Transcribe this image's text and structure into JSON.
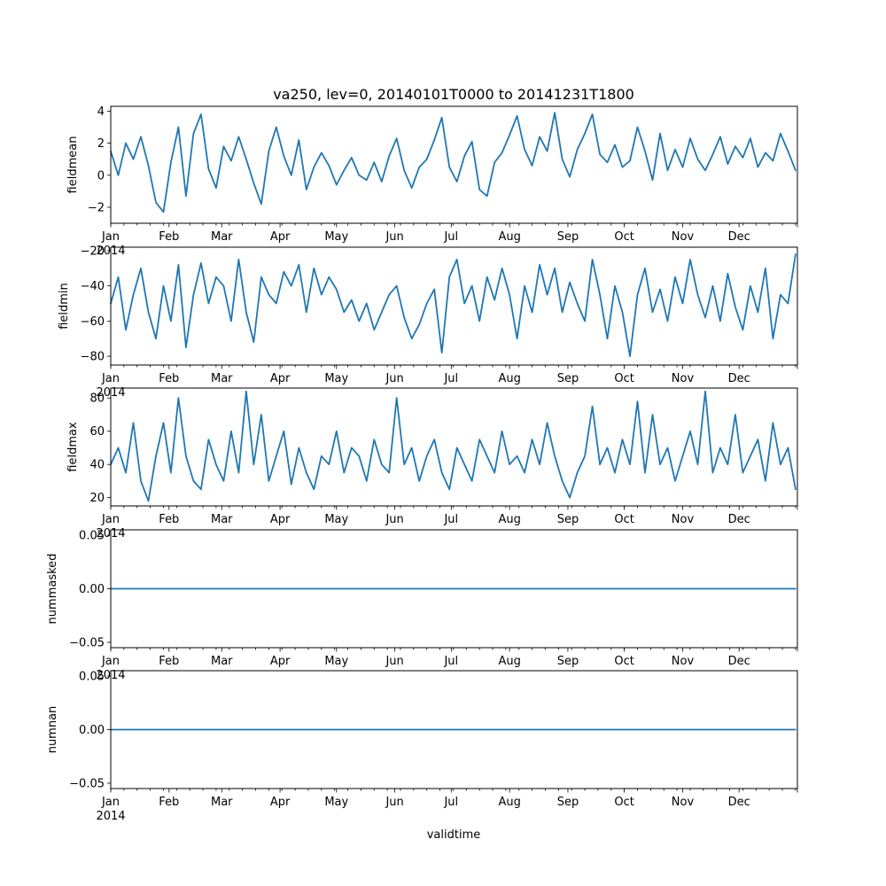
{
  "chart_data": {
    "type": "line",
    "title": "va250, lev=0, 20140101T0000 to 20141231T1800",
    "xlabel": "validtime",
    "x_range": [
      "2014-01-01",
      "2015-01-01"
    ],
    "x_month_labels": [
      "Jan",
      "Feb",
      "Mar",
      "Apr",
      "May",
      "Jun",
      "Jul",
      "Aug",
      "Sep",
      "Oct",
      "Nov",
      "Dec"
    ],
    "x_year_label": "2014",
    "color": "#1f77b4",
    "grid": false,
    "panels": [
      {
        "ylabel": "fieldmean",
        "ylim": [
          -3,
          4.3
        ],
        "yticks": [
          -2,
          0,
          2,
          4
        ],
        "ytick_labels": [
          "−2",
          "0",
          "2",
          "4"
        ],
        "x": [
          "2014-01-01",
          "2014-01-05",
          "2014-01-09",
          "2014-01-13",
          "2014-01-17",
          "2014-01-21",
          "2014-01-25",
          "2014-01-29",
          "2014-02-02",
          "2014-02-06",
          "2014-02-10",
          "2014-02-14",
          "2014-02-18",
          "2014-02-22",
          "2014-02-26",
          "2014-03-02",
          "2014-03-06",
          "2014-03-10",
          "2014-03-14",
          "2014-03-18",
          "2014-03-22",
          "2014-03-26",
          "2014-03-30",
          "2014-04-03",
          "2014-04-07",
          "2014-04-11",
          "2014-04-15",
          "2014-04-19",
          "2014-04-23",
          "2014-04-27",
          "2014-05-01",
          "2014-05-05",
          "2014-05-09",
          "2014-05-13",
          "2014-05-17",
          "2014-05-21",
          "2014-05-25",
          "2014-05-29",
          "2014-06-02",
          "2014-06-06",
          "2014-06-10",
          "2014-06-14",
          "2014-06-18",
          "2014-06-22",
          "2014-06-26",
          "2014-06-30",
          "2014-07-04",
          "2014-07-08",
          "2014-07-12",
          "2014-07-16",
          "2014-07-20",
          "2014-07-24",
          "2014-07-28",
          "2014-08-01",
          "2014-08-05",
          "2014-08-09",
          "2014-08-13",
          "2014-08-17",
          "2014-08-21",
          "2014-08-25",
          "2014-08-29",
          "2014-09-02",
          "2014-09-06",
          "2014-09-10",
          "2014-09-14",
          "2014-09-18",
          "2014-09-22",
          "2014-09-26",
          "2014-09-30",
          "2014-10-04",
          "2014-10-08",
          "2014-10-12",
          "2014-10-16",
          "2014-10-20",
          "2014-10-24",
          "2014-10-28",
          "2014-11-01",
          "2014-11-05",
          "2014-11-09",
          "2014-11-13",
          "2014-11-17",
          "2014-11-21",
          "2014-11-25",
          "2014-11-29",
          "2014-12-03",
          "2014-12-07",
          "2014-12-11",
          "2014-12-15",
          "2014-12-19",
          "2014-12-23",
          "2014-12-27",
          "2014-12-31"
        ],
        "values": [
          1.5,
          0.0,
          2.0,
          1.0,
          2.4,
          0.6,
          -1.7,
          -2.3,
          0.8,
          3.0,
          -1.3,
          2.6,
          3.8,
          0.4,
          -0.8,
          1.8,
          0.9,
          2.4,
          1.0,
          -0.5,
          -1.8,
          1.5,
          3.0,
          1.2,
          0.0,
          2.2,
          -0.9,
          0.5,
          1.4,
          0.6,
          -0.6,
          0.3,
          1.1,
          0.0,
          -0.3,
          0.8,
          -0.4,
          1.2,
          2.3,
          0.3,
          -0.8,
          0.5,
          1.0,
          2.2,
          3.6,
          0.5,
          -0.4,
          1.2,
          2.1,
          -0.9,
          -1.3,
          0.8,
          1.4,
          2.5,
          3.7,
          1.6,
          0.6,
          2.4,
          1.5,
          3.9,
          1.0,
          -0.1,
          1.6,
          2.6,
          3.8,
          1.3,
          0.8,
          1.9,
          0.5,
          0.9,
          3.0,
          1.5,
          -0.3,
          2.6,
          0.3,
          1.6,
          0.5,
          2.3,
          1.0,
          0.3,
          1.3,
          2.4,
          0.7,
          1.8,
          1.1,
          2.3,
          0.5,
          1.4,
          0.9,
          2.6,
          1.5,
          0.3
        ]
      },
      {
        "ylabel": "fieldmin",
        "ylim": [
          -85,
          -18
        ],
        "yticks": [
          -80,
          -60,
          -40,
          -20
        ],
        "ytick_labels": [
          "−80",
          "−60",
          "−40",
          "−20"
        ],
        "x": [
          "2014-01-01",
          "2014-01-05",
          "2014-01-09",
          "2014-01-13",
          "2014-01-17",
          "2014-01-21",
          "2014-01-25",
          "2014-01-29",
          "2014-02-02",
          "2014-02-06",
          "2014-02-10",
          "2014-02-14",
          "2014-02-18",
          "2014-02-22",
          "2014-02-26",
          "2014-03-02",
          "2014-03-06",
          "2014-03-10",
          "2014-03-14",
          "2014-03-18",
          "2014-03-22",
          "2014-03-26",
          "2014-03-30",
          "2014-04-03",
          "2014-04-07",
          "2014-04-11",
          "2014-04-15",
          "2014-04-19",
          "2014-04-23",
          "2014-04-27",
          "2014-05-01",
          "2014-05-05",
          "2014-05-09",
          "2014-05-13",
          "2014-05-17",
          "2014-05-21",
          "2014-05-25",
          "2014-05-29",
          "2014-06-02",
          "2014-06-06",
          "2014-06-10",
          "2014-06-14",
          "2014-06-18",
          "2014-06-22",
          "2014-06-26",
          "2014-06-30",
          "2014-07-04",
          "2014-07-08",
          "2014-07-12",
          "2014-07-16",
          "2014-07-20",
          "2014-07-24",
          "2014-07-28",
          "2014-08-01",
          "2014-08-05",
          "2014-08-09",
          "2014-08-13",
          "2014-08-17",
          "2014-08-21",
          "2014-08-25",
          "2014-08-29",
          "2014-09-02",
          "2014-09-06",
          "2014-09-10",
          "2014-09-14",
          "2014-09-18",
          "2014-09-22",
          "2014-09-26",
          "2014-09-30",
          "2014-10-04",
          "2014-10-08",
          "2014-10-12",
          "2014-10-16",
          "2014-10-20",
          "2014-10-24",
          "2014-10-28",
          "2014-11-01",
          "2014-11-05",
          "2014-11-09",
          "2014-11-13",
          "2014-11-17",
          "2014-11-21",
          "2014-11-25",
          "2014-11-29",
          "2014-12-03",
          "2014-12-07",
          "2014-12-11",
          "2014-12-15",
          "2014-12-19",
          "2014-12-23",
          "2014-12-27",
          "2014-12-31"
        ],
        "values": [
          -50,
          -35,
          -65,
          -45,
          -30,
          -55,
          -70,
          -40,
          -60,
          -28,
          -75,
          -45,
          -27,
          -50,
          -35,
          -40,
          -60,
          -25,
          -55,
          -72,
          -35,
          -45,
          -50,
          -32,
          -40,
          -28,
          -55,
          -30,
          -45,
          -35,
          -42,
          -55,
          -48,
          -60,
          -50,
          -65,
          -55,
          -45,
          -40,
          -58,
          -70,
          -62,
          -50,
          -42,
          -78,
          -35,
          -25,
          -50,
          -40,
          -60,
          -35,
          -48,
          -30,
          -45,
          -70,
          -40,
          -55,
          -28,
          -45,
          -30,
          -55,
          -38,
          -50,
          -60,
          -25,
          -45,
          -70,
          -40,
          -55,
          -80,
          -45,
          -30,
          -55,
          -42,
          -60,
          -35,
          -50,
          -25,
          -45,
          -58,
          -40,
          -60,
          -33,
          -52,
          -65,
          -40,
          -55,
          -30,
          -70,
          -45,
          -50,
          -22
        ]
      },
      {
        "ylabel": "fieldmax",
        "ylim": [
          15,
          86
        ],
        "yticks": [
          20,
          40,
          60,
          80
        ],
        "ytick_labels": [
          "20",
          "40",
          "60",
          "80"
        ],
        "x": [
          "2014-01-01",
          "2014-01-05",
          "2014-01-09",
          "2014-01-13",
          "2014-01-17",
          "2014-01-21",
          "2014-01-25",
          "2014-01-29",
          "2014-02-02",
          "2014-02-06",
          "2014-02-10",
          "2014-02-14",
          "2014-02-18",
          "2014-02-22",
          "2014-02-26",
          "2014-03-02",
          "2014-03-06",
          "2014-03-10",
          "2014-03-14",
          "2014-03-18",
          "2014-03-22",
          "2014-03-26",
          "2014-03-30",
          "2014-04-03",
          "2014-04-07",
          "2014-04-11",
          "2014-04-15",
          "2014-04-19",
          "2014-04-23",
          "2014-04-27",
          "2014-05-01",
          "2014-05-05",
          "2014-05-09",
          "2014-05-13",
          "2014-05-17",
          "2014-05-21",
          "2014-05-25",
          "2014-05-29",
          "2014-06-02",
          "2014-06-06",
          "2014-06-10",
          "2014-06-14",
          "2014-06-18",
          "2014-06-22",
          "2014-06-26",
          "2014-06-30",
          "2014-07-04",
          "2014-07-08",
          "2014-07-12",
          "2014-07-16",
          "2014-07-20",
          "2014-07-24",
          "2014-07-28",
          "2014-08-01",
          "2014-08-05",
          "2014-08-09",
          "2014-08-13",
          "2014-08-17",
          "2014-08-21",
          "2014-08-25",
          "2014-08-29",
          "2014-09-02",
          "2014-09-06",
          "2014-09-10",
          "2014-09-14",
          "2014-09-18",
          "2014-09-22",
          "2014-09-26",
          "2014-09-30",
          "2014-10-04",
          "2014-10-08",
          "2014-10-12",
          "2014-10-16",
          "2014-10-20",
          "2014-10-24",
          "2014-10-28",
          "2014-11-01",
          "2014-11-05",
          "2014-11-09",
          "2014-11-13",
          "2014-11-17",
          "2014-11-21",
          "2014-11-25",
          "2014-11-29",
          "2014-12-03",
          "2014-12-07",
          "2014-12-11",
          "2014-12-15",
          "2014-12-19",
          "2014-12-23",
          "2014-12-27",
          "2014-12-31"
        ],
        "values": [
          40,
          50,
          35,
          65,
          30,
          18,
          45,
          65,
          35,
          80,
          45,
          30,
          25,
          55,
          40,
          30,
          60,
          35,
          84,
          40,
          70,
          30,
          45,
          60,
          28,
          50,
          35,
          25,
          45,
          40,
          60,
          35,
          50,
          45,
          30,
          55,
          40,
          35,
          80,
          40,
          50,
          30,
          45,
          55,
          35,
          25,
          50,
          40,
          30,
          55,
          45,
          35,
          60,
          40,
          45,
          35,
          55,
          40,
          65,
          45,
          30,
          20,
          35,
          45,
          75,
          40,
          50,
          35,
          55,
          40,
          78,
          35,
          70,
          40,
          50,
          30,
          45,
          60,
          40,
          84,
          35,
          50,
          40,
          70,
          35,
          45,
          55,
          30,
          65,
          40,
          50,
          25
        ]
      },
      {
        "ylabel": "nummasked",
        "ylim": [
          -0.055,
          0.055
        ],
        "yticks": [
          -0.05,
          0.0,
          0.05
        ],
        "ytick_labels": [
          "−0.05",
          "0.00",
          "0.05"
        ],
        "x": [
          "2014-01-01",
          "2014-12-31"
        ],
        "values": [
          0,
          0
        ]
      },
      {
        "ylabel": "numnan",
        "ylim": [
          -0.055,
          0.055
        ],
        "yticks": [
          -0.05,
          0.0,
          0.05
        ],
        "ytick_labels": [
          "−0.05",
          "0.00",
          "0.05"
        ],
        "x": [
          "2014-01-01",
          "2014-12-31"
        ],
        "values": [
          0,
          0
        ]
      }
    ]
  }
}
